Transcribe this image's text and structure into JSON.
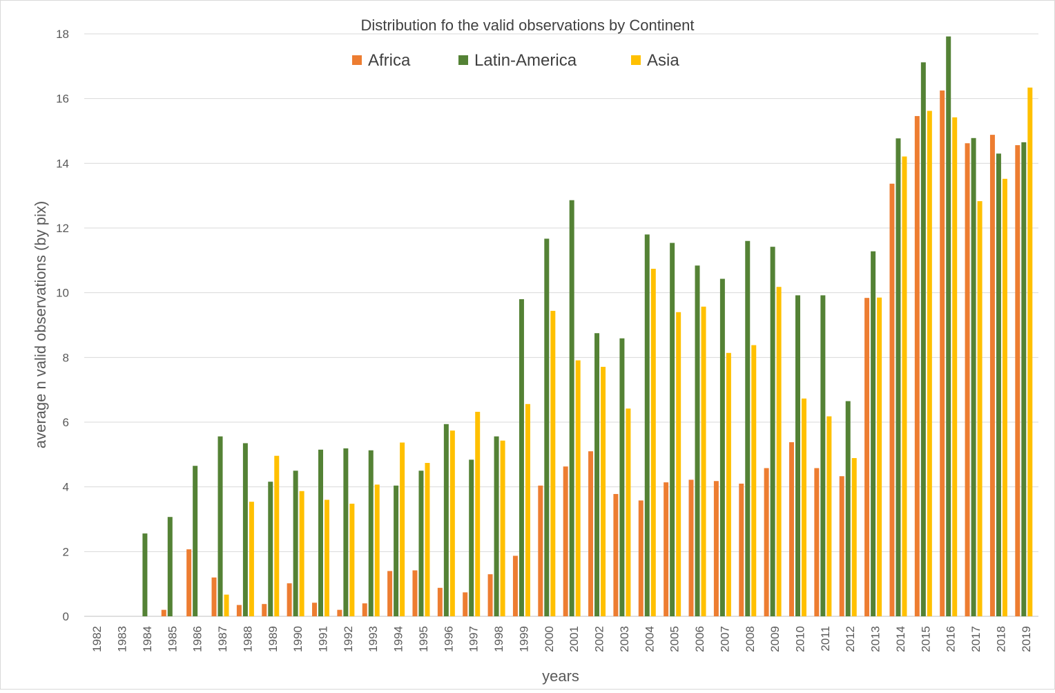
{
  "chart_data": {
    "type": "bar",
    "title": "Distribution fo the valid observations by Continent",
    "xlabel": "years",
    "ylabel": "average n valid observations (by pix)",
    "ylim": [
      0,
      18
    ],
    "yticks": [
      0,
      2,
      4,
      6,
      8,
      10,
      12,
      14,
      16,
      18
    ],
    "grid": true,
    "legend_position": "top-center",
    "categories": [
      "1982",
      "1983",
      "1984",
      "1985",
      "1986",
      "1987",
      "1988",
      "1989",
      "1990",
      "1991",
      "1992",
      "1993",
      "1994",
      "1995",
      "1996",
      "1997",
      "1998",
      "1999",
      "2000",
      "2001",
      "2002",
      "2003",
      "2004",
      "2005",
      "2006",
      "2007",
      "2008",
      "2009",
      "2010",
      "2011",
      "2012",
      "2013",
      "2014",
      "2015",
      "2016",
      "2017",
      "2018",
      "2019"
    ],
    "series": [
      {
        "name": "Africa",
        "color": "#ED7D31",
        "values": [
          0,
          0,
          0,
          0.2,
          2.07,
          1.2,
          0.35,
          0.38,
          1.02,
          0.42,
          0.2,
          0.4,
          1.4,
          1.42,
          0.88,
          0.74,
          1.3,
          1.87,
          4.04,
          4.63,
          5.1,
          3.78,
          3.58,
          4.14,
          4.22,
          4.18,
          4.1,
          4.58,
          5.38,
          4.58,
          4.33,
          9.84,
          13.37,
          15.46,
          16.25,
          14.62,
          14.88,
          14.56
        ]
      },
      {
        "name": "Latin-America",
        "color": "#548235",
        "values": [
          0,
          0,
          2.56,
          3.07,
          4.65,
          5.56,
          5.35,
          4.16,
          4.5,
          5.15,
          5.19,
          5.13,
          4.04,
          4.5,
          5.94,
          4.84,
          5.56,
          9.8,
          11.67,
          12.86,
          8.75,
          8.59,
          11.8,
          11.54,
          10.84,
          10.43,
          11.6,
          11.42,
          9.92,
          9.92,
          6.65,
          11.28,
          14.77,
          17.12,
          17.92,
          14.78,
          14.3,
          14.65
        ]
      },
      {
        "name": "Asia",
        "color": "#FFC000",
        "values": [
          0,
          0,
          0,
          0,
          0,
          0.67,
          3.54,
          4.96,
          3.87,
          3.6,
          3.48,
          4.07,
          5.37,
          4.74,
          5.74,
          6.32,
          5.43,
          6.56,
          9.44,
          7.91,
          7.71,
          6.42,
          10.74,
          9.4,
          9.57,
          8.14,
          8.38,
          10.18,
          6.73,
          6.18,
          4.89,
          9.85,
          14.21,
          15.62,
          15.42,
          12.83,
          13.52,
          16.34
        ]
      }
    ]
  }
}
